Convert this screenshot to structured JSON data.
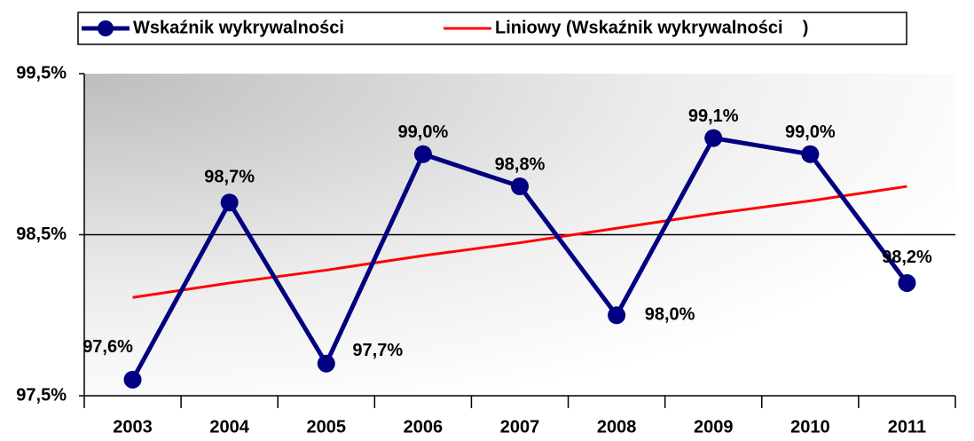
{
  "chart_data": {
    "type": "line",
    "categories": [
      "2003",
      "2004",
      "2005",
      "2006",
      "2007",
      "2008",
      "2009",
      "2010",
      "2011"
    ],
    "series": [
      {
        "name": "Wskaźnik wykrywalności",
        "color": "#000080",
        "values": [
          97.6,
          98.7,
          97.7,
          99.0,
          98.8,
          98.0,
          99.1,
          99.0,
          98.2
        ],
        "value_labels": [
          "97,6%",
          "98,7%",
          "97,7%",
          "99,0%",
          "98,8%",
          "98,0%",
          "99,1%",
          "99,0%",
          "98,2%"
        ]
      },
      {
        "name": "Liniowy (Wskaźnik wykrywalności    )",
        "color": "#ff0000",
        "values": [
          98.11,
          98.2,
          98.28,
          98.37,
          98.45,
          98.54,
          98.63,
          98.71,
          98.8
        ]
      }
    ],
    "ylim": [
      97.5,
      99.5
    ],
    "yticks": [
      {
        "value": 97.5,
        "label": "97,5%"
      },
      {
        "value": 98.5,
        "label": "98,5%"
      },
      {
        "value": 99.5,
        "label": "99,5%"
      }
    ],
    "grid": true
  }
}
